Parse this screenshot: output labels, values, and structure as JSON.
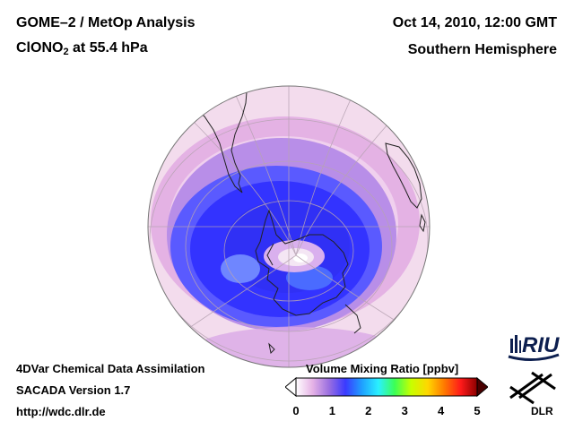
{
  "header": {
    "title_line1": "GOME–2 / MetOp Analysis",
    "species_prefix": "ClONO",
    "species_subscript": "2",
    "species_suffix": " at 55.4 hPa",
    "date": "Oct 14, 2010, 12:00 GMT",
    "region": "Southern Hemisphere"
  },
  "footer": {
    "line1": "4DVar Chemical Data Assimilation",
    "line2": "SACADA Version 1.7",
    "line3": "http://wdc.dlr.de"
  },
  "colorbar": {
    "title": "Volume Mixing Ratio [ppbv]",
    "ticks": [
      "0",
      "1",
      "2",
      "3",
      "4",
      "5"
    ],
    "colors": [
      "#ffffff",
      "#e6b3e6",
      "#9b6fe0",
      "#3a3aff",
      "#1fa0ff",
      "#2af0ff",
      "#3cff55",
      "#c8ff00",
      "#ffd700",
      "#ff7a00",
      "#ff1a1a",
      "#8b0000"
    ]
  },
  "logos": {
    "riu": "RIU",
    "dlr": "DLR"
  }
}
